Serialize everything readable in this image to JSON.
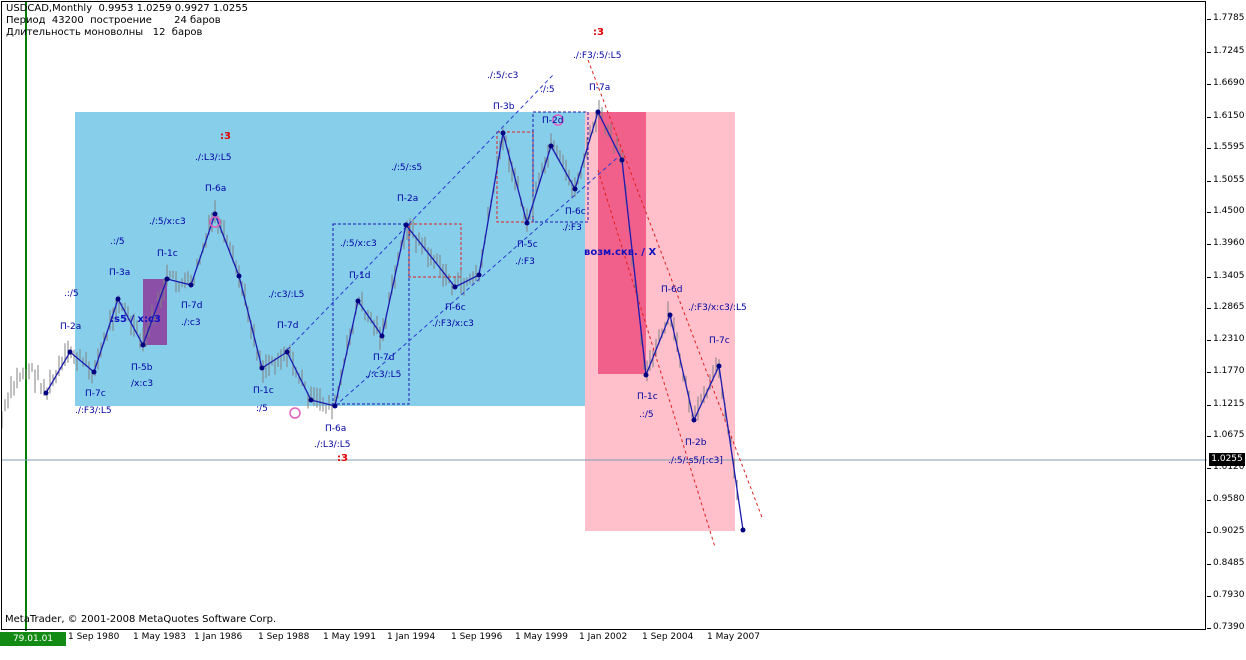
{
  "header": {
    "line1": "USDCAD,Monthly  0.9953 1.0259 0.9927 1.0255",
    "line2": "Период  43200  построение       24 баров",
    "line3": "Длительность моноволны   12  баров"
  },
  "footer": {
    "copyright": "MetaTrader, © 2001-2008 MetaQuotes Software Corp.",
    "cursor_date": "79.01.01 00:00"
  },
  "price_axis": {
    "labels": [
      "1.7785",
      "1.7245",
      "1.6690",
      "1.6150",
      "1.5595",
      "1.5055",
      "1.4500",
      "1.3960",
      "1.3405",
      "1.2865",
      "1.2310",
      "1.1770",
      "1.1215",
      "1.0675",
      "1.0120",
      "0.9580",
      "0.9025",
      "0.8485",
      "0.7930",
      "0.7390"
    ],
    "current_price": "1.0255"
  },
  "time_axis": {
    "labels": [
      "1 Sep 1980",
      "1 May 1983",
      "1 Jan 1986",
      "1 Sep 1988",
      "1 May 1991",
      "1 Jan 1994",
      "1 Sep 1996",
      "1 May 1999",
      "1 Jan 2002",
      "1 Sep 2004",
      "1 May 2007"
    ]
  },
  "colors": {
    "bull_zone": "#87ceeb",
    "bear_zone": "#ffc0cb",
    "bear_core": "#f0608a",
    "purple_box": "#8c4fa8",
    "wave_line": "#1a1ab0",
    "trend_blue": "#2a3cd0",
    "trend_red": "#e02020",
    "bars": "#808080",
    "period_sep": "#008000",
    "current_price_line": "#7f9cb0"
  },
  "annotations": {
    "p2a_left": "П-2a",
    "p3a": "П-3a",
    "p5b": "П-5b",
    "p7c_left": "П-7c",
    "f3_l5": "./:F3/:L5",
    "slash5_left": ".:/5",
    "slash5b": ".:/5",
    "s5_xc3": ":s5 / x:c3",
    "xc3_small": "/x:c3",
    "p1c_left": "П-1c",
    "p7d_left": "П-7d",
    "c3_left": "./:c3",
    "p6a_top": "П-6a",
    "l3_l5_top": "./:L3/:L5",
    "red3_left": ":3",
    "slash5_xc3": "./:5/x:c3",
    "c3_l5_mid": "./:c3/:L5",
    "p7d_mid": "П-7d",
    "p1c_mid": "П-1c",
    "slash5_mid": ":/5",
    "p6a_bottom": "П-6a",
    "l3_l5_bottom": "./:L3/:L5",
    "red3_bottom": ":3",
    "slash5_xc3_b": "./:5/x:c3",
    "p1d": "П-1d",
    "c3_l5_b": "./:c3/:L5",
    "p7d_b": "П-7d",
    "p2a_mid": "П-2a",
    "slash5_s5": "./:5/:s5",
    "p6c": "П-6c",
    "f3_xc3": "./:F3/x:c3",
    "slash5_c3": "./:5/:c3",
    "slash5_top": "./:5",
    "p3b": "П-3b",
    "p5c": "П-5c",
    "f3_mid": "./:F3",
    "p2d": "П-2d",
    "p6c_b": "П-6c",
    "f3_right": "./:F3",
    "red3_top": ":3",
    "f3_5_l5": "./:F3/:5/:L5",
    "p7a": "П-7a",
    "vozm": "возм.скв. / X",
    "p6d": "П-6d",
    "f3_xc3_l5": "./:F3/x:c3/:L5",
    "p7c_right": "П-7c",
    "p1c_right": "П-1c",
    "slash5_right": ".:/5",
    "p2b": "П-2b",
    "s5_c3": "./:5/:s5/[:c3]"
  }
}
